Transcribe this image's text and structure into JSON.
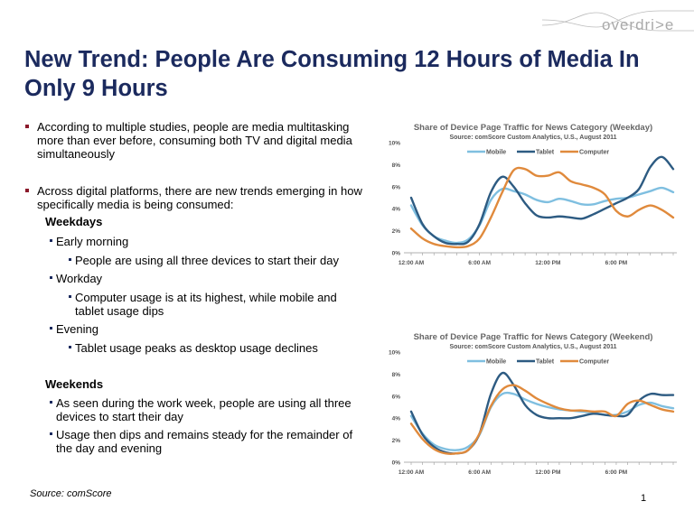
{
  "logo": {
    "text": "overdrive"
  },
  "title": "New Trend: People Are Consuming 12 Hours of Media In Only 9 Hours",
  "bullets": [
    "According to multiple studies, people are media multitasking more than ever before, consuming both TV and digital media simultaneously",
    "Across digital platforms, there are new trends emerging in how specifically media is being consumed:"
  ],
  "weekdays": {
    "heading": "Weekdays",
    "early_morning": "Early morning",
    "early_morning_detail": "People are using all three devices to start their day",
    "workday": "Workday",
    "workday_detail": "Computer usage is at its highest, while mobile and tablet usage dips",
    "evening": "Evening",
    "evening_detail": "Tablet usage peaks as desktop usage declines"
  },
  "weekends": {
    "heading": "Weekends",
    "items": [
      "As seen during the work week, people are using all three devices to start their day",
      "Usage then dips and remains steady for the remainder of the day and evening"
    ]
  },
  "source": "Source: comScore",
  "page_number": "1",
  "chart_data": [
    {
      "type": "line",
      "title": "Share of Device Page Traffic for News Category (Weekday)",
      "subtitle": "Source: comScore Custom Analytics, U.S., August 2011",
      "x": [
        0,
        1,
        2,
        3,
        4,
        5,
        6,
        7,
        8,
        9,
        10,
        11,
        12,
        13,
        14,
        15,
        16,
        17,
        18,
        19,
        20,
        21,
        22,
        23
      ],
      "xticks": [
        {
          "value": 0,
          "label": "12:00 AM"
        },
        {
          "value": 6,
          "label": "6:00 AM"
        },
        {
          "value": 12,
          "label": "12:00 PM"
        },
        {
          "value": 18,
          "label": "6:00 PM"
        }
      ],
      "yticks": [
        "0%",
        "2%",
        "4%",
        "6%",
        "8%",
        "10%"
      ],
      "ylim": [
        0,
        10
      ],
      "legend": "top",
      "series": [
        {
          "name": "Mobile",
          "color": "#7fbfe0",
          "values": [
            4.3,
            2.5,
            1.5,
            1.1,
            0.9,
            1.2,
            2.5,
            4.8,
            5.8,
            5.6,
            5.3,
            4.8,
            4.6,
            4.9,
            4.7,
            4.4,
            4.4,
            4.7,
            4.9,
            5.0,
            5.3,
            5.6,
            5.9,
            5.5
          ]
        },
        {
          "name": "Tablet",
          "color": "#2d5b82",
          "values": [
            5.0,
            2.6,
            1.5,
            0.9,
            0.8,
            1.0,
            2.6,
            5.5,
            6.9,
            6.0,
            4.5,
            3.4,
            3.2,
            3.3,
            3.2,
            3.1,
            3.5,
            4.0,
            4.5,
            5.0,
            5.8,
            7.8,
            8.7,
            7.6
          ]
        },
        {
          "name": "Computer",
          "color": "#e08a3c",
          "values": [
            2.2,
            1.3,
            0.8,
            0.6,
            0.5,
            0.6,
            1.3,
            3.2,
            5.5,
            7.5,
            7.6,
            7.0,
            7.0,
            7.3,
            6.5,
            6.2,
            5.9,
            5.3,
            3.8,
            3.3,
            3.9,
            4.3,
            3.9,
            3.2
          ]
        }
      ]
    },
    {
      "type": "line",
      "title": "Share of Device Page Traffic for News Category (Weekend)",
      "subtitle": "Source: comScore Custom Analytics, U.S., August 2011",
      "x": [
        0,
        1,
        2,
        3,
        4,
        5,
        6,
        7,
        8,
        9,
        10,
        11,
        12,
        13,
        14,
        15,
        16,
        17,
        18,
        19,
        20,
        21,
        22,
        23
      ],
      "xticks": [
        {
          "value": 0,
          "label": "12:00 AM"
        },
        {
          "value": 6,
          "label": "6:00 AM"
        },
        {
          "value": 12,
          "label": "12:00 PM"
        },
        {
          "value": 18,
          "label": "6:00 PM"
        }
      ],
      "yticks": [
        "0%",
        "2%",
        "4%",
        "6%",
        "8%",
        "10%"
      ],
      "ylim": [
        0,
        10
      ],
      "legend": "top",
      "series": [
        {
          "name": "Mobile",
          "color": "#7fbfe0",
          "values": [
            4.2,
            2.6,
            1.6,
            1.2,
            1.1,
            1.4,
            2.5,
            5.0,
            6.2,
            6.2,
            5.7,
            5.3,
            5.0,
            4.8,
            4.7,
            4.6,
            4.5,
            4.3,
            4.3,
            4.6,
            5.2,
            5.4,
            5.1,
            4.9
          ]
        },
        {
          "name": "Tablet",
          "color": "#2d5b82",
          "values": [
            4.6,
            2.5,
            1.4,
            0.9,
            0.8,
            1.1,
            2.6,
            6.2,
            8.1,
            7.0,
            5.2,
            4.3,
            4.0,
            4.0,
            4.0,
            4.2,
            4.4,
            4.3,
            4.2,
            4.3,
            5.6,
            6.2,
            6.1,
            6.1
          ]
        },
        {
          "name": "Computer",
          "color": "#e08a3c",
          "values": [
            3.5,
            2.1,
            1.2,
            0.8,
            0.8,
            1.1,
            2.6,
            5.1,
            6.6,
            7.0,
            6.5,
            5.8,
            5.3,
            4.9,
            4.7,
            4.7,
            4.6,
            4.6,
            4.2,
            5.3,
            5.6,
            5.2,
            4.8,
            4.6
          ]
        }
      ]
    }
  ]
}
